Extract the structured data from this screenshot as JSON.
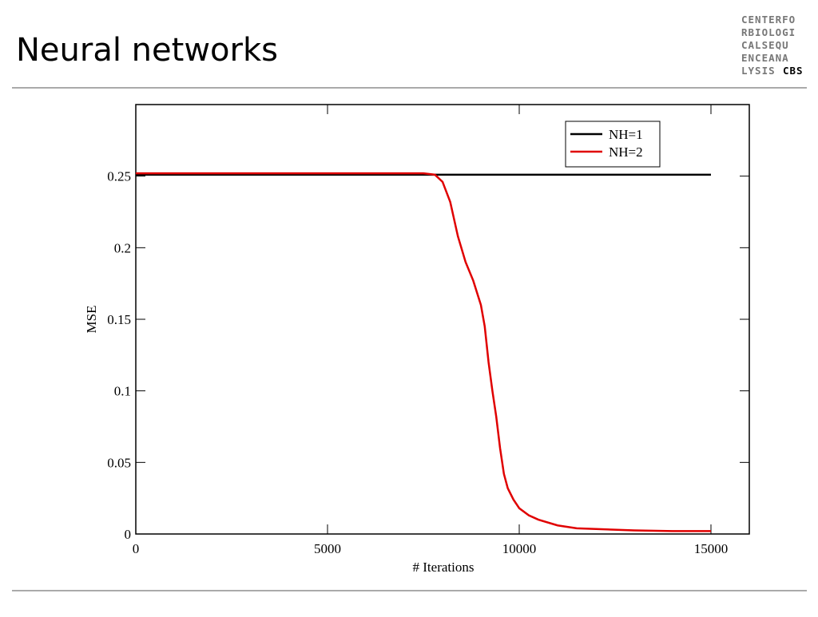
{
  "slide_title": "Neural networks",
  "logo": {
    "lines": [
      "CENTERFO",
      "RBIOLOGI",
      "CALSEQU",
      "ENCEANA",
      "LYSIS"
    ],
    "bold": "CBS"
  },
  "chart_data": {
    "type": "line",
    "x_label": "# Iterations",
    "y_label": "MSE",
    "x": [
      0,
      7500,
      7800,
      8000,
      8200,
      8400,
      8600,
      8800,
      9000,
      9100,
      9200,
      9300,
      9400,
      9500,
      9600,
      9700,
      9850,
      10000,
      10250,
      10500,
      11000,
      11500,
      12000,
      13000,
      14000,
      15000
    ],
    "series": [
      {
        "name": "NH=1",
        "color": "#000000",
        "values": [
          0.251,
          0.251,
          0.251,
          0.251,
          0.251,
          0.251,
          0.251,
          0.251,
          0.251,
          0.251,
          0.251,
          0.251,
          0.251,
          0.251,
          0.251,
          0.251,
          0.251,
          0.251,
          0.251,
          0.251,
          0.251,
          0.251,
          0.251,
          0.251,
          0.251,
          0.251
        ]
      },
      {
        "name": "NH=2",
        "color": "#e00000",
        "values": [
          0.252,
          0.252,
          0.251,
          0.246,
          0.232,
          0.208,
          0.19,
          0.177,
          0.16,
          0.145,
          0.12,
          0.1,
          0.082,
          0.06,
          0.042,
          0.032,
          0.024,
          0.018,
          0.013,
          0.01,
          0.006,
          0.004,
          0.0035,
          0.0025,
          0.002,
          0.002
        ]
      }
    ],
    "xlim": [
      0,
      16000
    ],
    "xticks": [
      0,
      5000,
      10000,
      15000
    ],
    "ylim": [
      0,
      0.3
    ],
    "yticks": [
      0,
      0.05,
      0.1,
      0.15,
      0.2,
      0.25
    ],
    "legend": "upper right"
  }
}
